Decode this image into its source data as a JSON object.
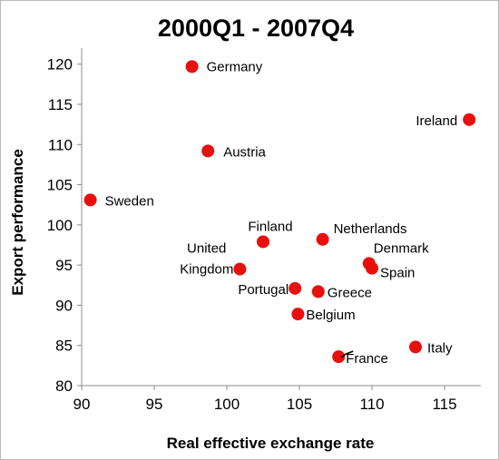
{
  "chart_data": {
    "type": "scatter",
    "title": "2000Q1 - 2007Q4",
    "xlabel": "Real effective exchange rate",
    "ylabel": "Export performance",
    "xlim": [
      90,
      117.5
    ],
    "ylim": [
      80,
      122
    ],
    "xticks": [
      "90",
      "95",
      "100",
      "105",
      "110",
      "115"
    ],
    "yticks": [
      "80",
      "85",
      "90",
      "95",
      "100",
      "105",
      "110",
      "115",
      "120"
    ],
    "grid": false,
    "marker_color": "#e8100f",
    "points": [
      {
        "label": "Germany",
        "x": 97.6,
        "y": 119.7
      },
      {
        "label": "Ireland",
        "x": 116.7,
        "y": 113.1
      },
      {
        "label": "Austria",
        "x": 98.7,
        "y": 109.2
      },
      {
        "label": "Sweden",
        "x": 90.6,
        "y": 103.1
      },
      {
        "label": "Finland",
        "x": 102.5,
        "y": 97.9
      },
      {
        "label": "Netherlands",
        "x": 106.6,
        "y": 98.2
      },
      {
        "label": "United Kingdom",
        "x": 100.9,
        "y": 94.5
      },
      {
        "label": "Denmark",
        "x": 109.8,
        "y": 95.2
      },
      {
        "label": "Spain",
        "x": 110.0,
        "y": 94.6
      },
      {
        "label": "Portugal",
        "x": 104.7,
        "y": 92.1
      },
      {
        "label": "Greece",
        "x": 106.3,
        "y": 91.7
      },
      {
        "label": "Belgium",
        "x": 104.9,
        "y": 88.9
      },
      {
        "label": "Italy",
        "x": 113.0,
        "y": 84.8
      },
      {
        "label": "France",
        "x": 107.7,
        "y": 83.6
      }
    ]
  }
}
